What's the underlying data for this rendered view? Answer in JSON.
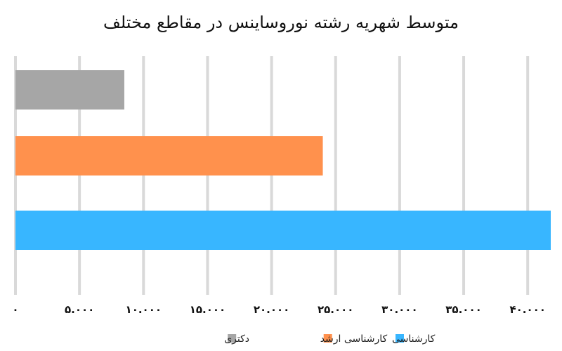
{
  "chart_data": {
    "type": "bar",
    "orientation": "horizontal",
    "title": "متوسط شهریه رشته نوروساینس در مقاطع مختلف",
    "categories": [
      "دکتری",
      "کارشناسی ارشد",
      "کارشناسی"
    ],
    "series": [
      {
        "name": "دکتری",
        "color": "#a6a6a6",
        "value": 8500
      },
      {
        "name": "کارشناسی ارشد",
        "color": "#ff914d",
        "value": 24000
      },
      {
        "name": "کارشناسی",
        "color": "#38b6ff",
        "value": 41800
      }
    ],
    "x_ticks": [
      {
        "value": 0,
        "label": "۰"
      },
      {
        "value": 5000,
        "label": "۵.۰۰۰"
      },
      {
        "value": 10000,
        "label": "۱۰.۰۰۰"
      },
      {
        "value": 15000,
        "label": "۱۵.۰۰۰"
      },
      {
        "value": 20000,
        "label": "۲۰.۰۰۰"
      },
      {
        "value": 25000,
        "label": "۲۵.۰۰۰"
      },
      {
        "value": 30000,
        "label": "۳۰.۰۰۰"
      },
      {
        "value": 35000,
        "label": "۳۵.۰۰۰"
      },
      {
        "value": 40000,
        "label": "۴۰.۰۰۰"
      }
    ],
    "xlim": [
      0,
      41800
    ],
    "grid": true,
    "grid_color": "#d9d9d9",
    "legend_position": "bottom",
    "legend": [
      {
        "label": "کارشناسی",
        "color": "#38b6ff"
      },
      {
        "label": "کارشناسی ارشد",
        "color": "#ff914d"
      },
      {
        "label": "دکتری",
        "color": "#a6a6a6"
      }
    ]
  }
}
